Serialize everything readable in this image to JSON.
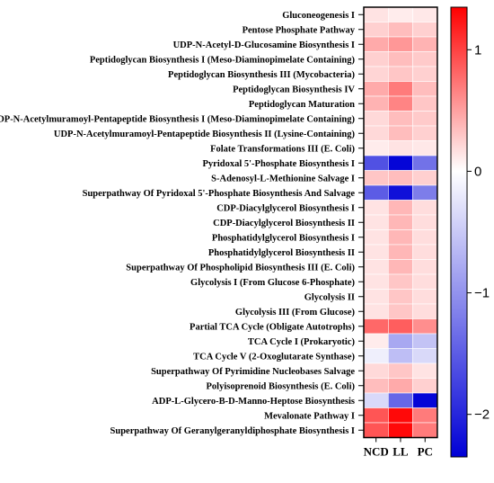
{
  "chart_data": {
    "type": "heatmap",
    "columns": [
      "NCD",
      "LL",
      "PC"
    ],
    "rows": [
      "Gluconeogenesis I",
      "Pentose Phosphate Pathway",
      "UDP-N-Acetyl-D-Glucosamine Biosynthesis I",
      "Peptidoglycan Biosynthesis I (Meso-Diaminopimelate Containing)",
      "Peptidoglycan Biosynthesis III (Mycobacteria)",
      "Peptidoglycan Biosynthesis IV",
      "Peptidoglycan Maturation",
      "UDP-N-Acetylmuramoyl-Pentapeptide Biosynthesis I (Meso-Diaminopimelate Containing)",
      "UDP-N-Acetylmuramoyl-Pentapeptide Biosynthesis II (Lysine-Containing)",
      "Folate Transformations III (E. Coli)",
      "Pyridoxal 5'-Phosphate Biosynthesis I",
      "S-Adenosyl-L-Methionine Salvage I",
      "Superpathway Of Pyridoxal 5'-Phosphate Biosynthesis And Salvage",
      "CDP-Diacylglycerol Biosynthesis I",
      "CDP-Diacylglycerol Biosynthesis II",
      "Phosphatidylglycerol Biosynthesis I",
      "Phosphatidylglycerol Biosynthesis II",
      "Superpathway Of Phospholipid Biosynthesis III (E. Coli)",
      "Glycolysis I (From Glucose 6-Phosphate)",
      "Glycolysis II",
      "Glycolysis III (From Glucose)",
      "Partial TCA Cycle (Obligate Autotrophs)",
      "TCA Cycle I (Prokaryotic)",
      "TCA Cycle V (2-Oxoglutarate Synthase)",
      "Superpathway Of Pyrimidine Nucleobases Salvage",
      "Polyisoprenoid Biosynthesis (E. Coli)",
      "ADP-L-Glycero-B-D-Manno-Heptose Biosynthesis",
      "Mevalonate Pathway I",
      "Superpathway Of Geranylgeranyldiphosphate Biosynthesis I"
    ],
    "values": [
      [
        0.15,
        0.1,
        0.12
      ],
      [
        0.25,
        0.35,
        0.25
      ],
      [
        0.45,
        0.55,
        0.4
      ],
      [
        0.25,
        0.35,
        0.28
      ],
      [
        0.22,
        0.3,
        0.25
      ],
      [
        0.45,
        0.7,
        0.35
      ],
      [
        0.4,
        0.65,
        0.3
      ],
      [
        0.2,
        0.35,
        0.28
      ],
      [
        0.2,
        0.35,
        0.25
      ],
      [
        0.1,
        0.15,
        0.12
      ],
      [
        -1.6,
        -2.3,
        -1.3
      ],
      [
        0.3,
        0.35,
        0.25
      ],
      [
        -1.5,
        -2.2,
        -1.2
      ],
      [
        0.15,
        0.38,
        0.18
      ],
      [
        0.15,
        0.38,
        0.18
      ],
      [
        0.15,
        0.38,
        0.18
      ],
      [
        0.15,
        0.38,
        0.18
      ],
      [
        0.15,
        0.38,
        0.18
      ],
      [
        0.15,
        0.3,
        0.18
      ],
      [
        0.15,
        0.3,
        0.18
      ],
      [
        0.15,
        0.3,
        0.18
      ],
      [
        0.8,
        0.85,
        0.6
      ],
      [
        0.1,
        -0.8,
        -0.55
      ],
      [
        -0.15,
        -0.6,
        -0.35
      ],
      [
        0.2,
        0.3,
        0.15
      ],
      [
        0.35,
        0.45,
        0.25
      ],
      [
        -0.35,
        -1.4,
        -2.3
      ],
      [
        0.9,
        1.3,
        0.7
      ],
      [
        0.9,
        1.3,
        0.7
      ]
    ],
    "colorbar": {
      "min": -2.35,
      "max": 1.35,
      "ticks": [
        1,
        0,
        -1,
        -2
      ],
      "tick_labels": [
        "1",
        "0",
        "−1",
        "−2"
      ],
      "low_color": "#0000d6",
      "mid_color": "#ffffff",
      "high_color": "#ff0000"
    }
  }
}
